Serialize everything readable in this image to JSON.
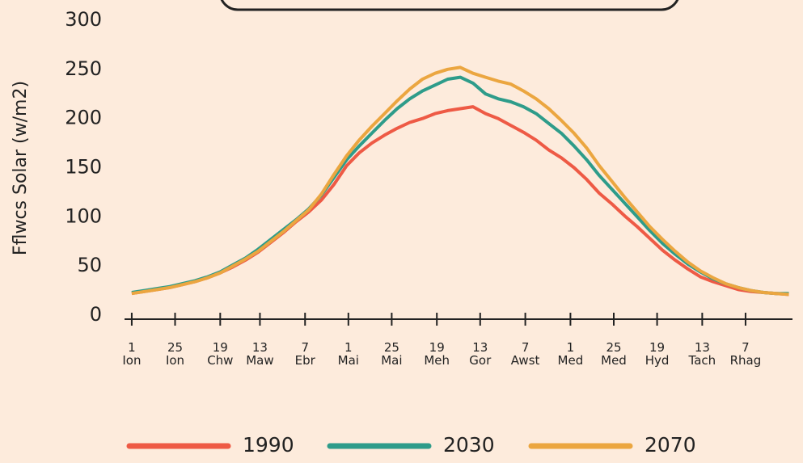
{
  "chart_data": {
    "type": "line",
    "ylabel": "Fflwcs Solar  (w/m2)",
    "x": [
      0,
      7,
      14,
      21,
      28,
      35,
      42,
      49,
      56,
      63,
      70,
      77,
      84,
      91,
      98,
      105,
      112,
      119,
      126,
      133,
      140,
      147,
      154,
      161,
      168,
      175,
      182,
      189,
      196,
      203,
      210,
      217,
      224,
      231,
      238,
      245,
      252,
      259,
      266,
      273,
      280,
      287,
      294,
      301,
      308,
      315,
      322,
      329,
      336,
      343,
      350,
      357,
      364
    ],
    "series": [
      {
        "name": "1990",
        "color": "#ee5a45",
        "values": [
          22,
          24,
          26,
          28,
          31,
          34,
          38,
          43,
          49,
          56,
          64,
          74,
          84,
          95,
          105,
          117,
          133,
          152,
          165,
          175,
          183,
          190,
          196,
          200,
          205,
          208,
          210,
          212,
          205,
          200,
          193,
          186,
          178,
          168,
          160,
          150,
          138,
          124,
          113,
          101,
          90,
          78,
          66,
          56,
          47,
          39,
          34,
          30,
          26,
          24,
          23,
          22,
          21
        ]
      },
      {
        "name": "2030",
        "color": "#2e9c8a",
        "values": [
          23,
          25,
          27,
          29,
          32,
          35,
          39,
          44,
          51,
          58,
          67,
          77,
          87,
          97,
          108,
          122,
          140,
          158,
          172,
          185,
          198,
          210,
          220,
          228,
          234,
          240,
          242,
          236,
          225,
          220,
          217,
          212,
          205,
          195,
          185,
          172,
          158,
          142,
          128,
          114,
          100,
          86,
          73,
          62,
          52,
          44,
          37,
          32,
          28,
          25,
          23,
          22,
          22
        ]
      },
      {
        "name": "2070",
        "color": "#eba640",
        "values": [
          22,
          24,
          26,
          28,
          31,
          34,
          38,
          43,
          50,
          57,
          65,
          75,
          85,
          96,
          107,
          123,
          143,
          162,
          178,
          192,
          205,
          218,
          230,
          240,
          246,
          250,
          252,
          246,
          242,
          238,
          235,
          228,
          220,
          210,
          198,
          185,
          170,
          152,
          136,
          120,
          105,
          90,
          77,
          65,
          54,
          45,
          38,
          32,
          28,
          25,
          23,
          22,
          21
        ]
      }
    ],
    "xlim": [
      -4,
      366
    ],
    "xticks": [
      {
        "value": 0,
        "label": "1\nIon"
      },
      {
        "value": 24,
        "label": "25\nIon"
      },
      {
        "value": 49,
        "label": "19\nChw"
      },
      {
        "value": 71,
        "label": "13\nMaw"
      },
      {
        "value": 96,
        "label": "7\nEbr"
      },
      {
        "value": 120,
        "label": "1\nMai"
      },
      {
        "value": 144,
        "label": "25\nMai"
      },
      {
        "value": 169,
        "label": "19\nMeh"
      },
      {
        "value": 193,
        "label": "13\nGor"
      },
      {
        "value": 218,
        "label": "7\nAwst"
      },
      {
        "value": 243,
        "label": "1\nMed"
      },
      {
        "value": 267,
        "label": "25\nMed"
      },
      {
        "value": 291,
        "label": "19\nHyd"
      },
      {
        "value": 316,
        "label": "13\nTach"
      },
      {
        "value": 340,
        "label": "7\nRhag"
      }
    ],
    "ylim": [
      0,
      300
    ],
    "yticks": [
      0,
      50,
      100,
      150,
      200,
      250,
      300
    ]
  }
}
